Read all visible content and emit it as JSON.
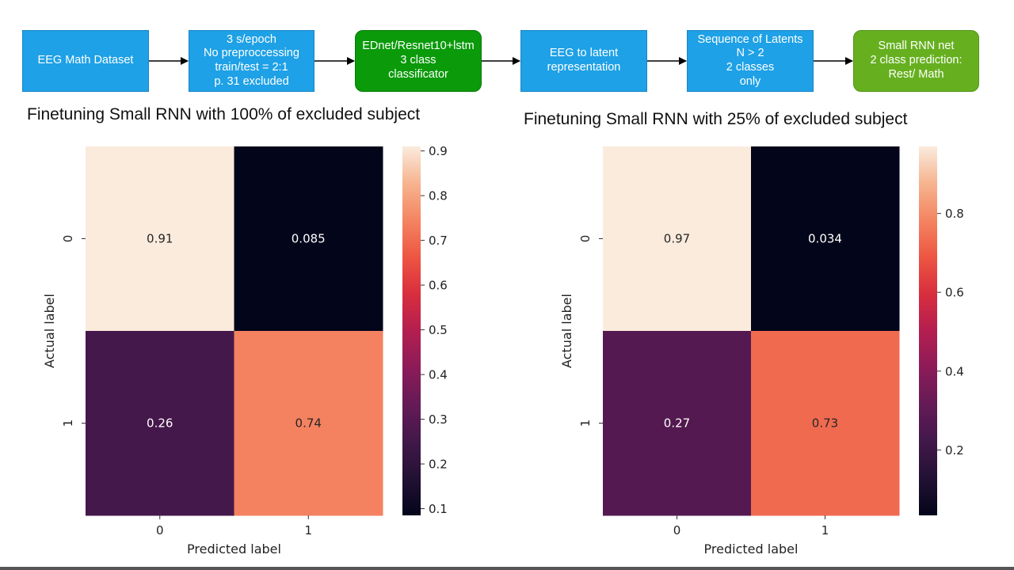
{
  "pipeline": [
    {
      "lines": [
        "EEG Math Dataset"
      ],
      "color": "#1ea1e6"
    },
    {
      "lines": [
        "3 s/epoch",
        "No preproccessing",
        "train/test = 2:1",
        "p. 31 excluded"
      ],
      "color": "#1ea1e6"
    },
    {
      "lines": [
        "EDnet/Resnet10+lstm",
        "3 class",
        "classificator"
      ],
      "color": "#0a9a0a"
    },
    {
      "lines": [
        "EEG to latent",
        "representation"
      ],
      "color": "#1ea1e6"
    },
    {
      "lines": [
        "Sequence of Latents",
        "N > 2",
        "2 classes",
        "only"
      ],
      "color": "#1ea1e6"
    },
    {
      "lines": [
        "Small RNN net",
        "2 class prediction:",
        "Rest/ Math"
      ],
      "color": "#66b01f"
    }
  ],
  "chart_data": [
    {
      "type": "heatmap",
      "title": "Finetuning Small RNN with 100% of excluded subject",
      "xlabel": "Predicted label",
      "ylabel": "Actual label",
      "x_categories": [
        "0",
        "1"
      ],
      "y_categories": [
        "0",
        "1"
      ],
      "values": [
        [
          0.91,
          0.085
        ],
        [
          0.26,
          0.74
        ]
      ],
      "colorbar": {
        "colormap": "rocket",
        "range": [
          0.085,
          0.91
        ],
        "ticks": [
          0.1,
          0.2,
          0.3,
          0.4,
          0.5,
          0.6,
          0.7,
          0.8,
          0.9
        ],
        "tick_labels": [
          "0.1",
          "0.2",
          "0.3",
          "0.4",
          "0.5",
          "0.6",
          "0.7",
          "0.8",
          "0.9"
        ]
      }
    },
    {
      "type": "heatmap",
      "title": "Finetuning Small RNN with 25% of excluded subject",
      "xlabel": "Predicted label",
      "ylabel": "Actual label",
      "x_categories": [
        "0",
        "1"
      ],
      "y_categories": [
        "0",
        "1"
      ],
      "values": [
        [
          0.97,
          0.034
        ],
        [
          0.27,
          0.73
        ]
      ],
      "colorbar": {
        "colormap": "rocket",
        "range": [
          0.034,
          0.97
        ],
        "ticks": [
          0.2,
          0.4,
          0.6,
          0.8
        ],
        "tick_labels": [
          "0.2",
          "0.4",
          "0.6",
          "0.8"
        ]
      }
    }
  ]
}
